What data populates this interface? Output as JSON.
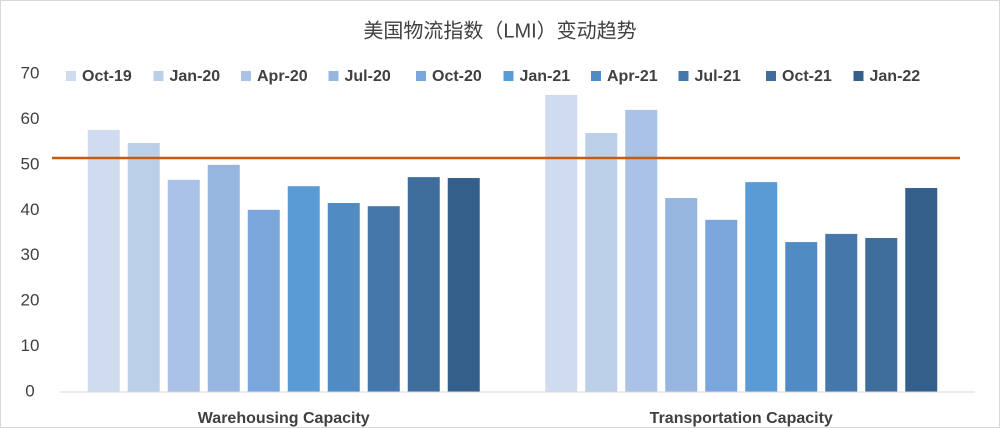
{
  "chart_data": {
    "type": "bar",
    "title": "美国物流指数（LMI）变动趋势",
    "categories": [
      "Warehousing Capacity",
      "Transportation Capacity"
    ],
    "series": [
      {
        "name": "Oct-19",
        "color": "#cfdcef",
        "values": [
          57.7,
          65.4
        ]
      },
      {
        "name": "Jan-20",
        "color": "#bccfe9",
        "values": [
          54.8,
          57.0
        ]
      },
      {
        "name": "Apr-20",
        "color": "#a9c2e5",
        "values": [
          46.7,
          62.1
        ]
      },
      {
        "name": "Jul-20",
        "color": "#96b6df",
        "values": [
          50.0,
          42.7
        ]
      },
      {
        "name": "Oct-20",
        "color": "#7aa6dc",
        "values": [
          40.1,
          37.9
        ]
      },
      {
        "name": "Jan-21",
        "color": "#5b9bd5",
        "values": [
          45.3,
          46.2
        ]
      },
      {
        "name": "Apr-21",
        "color": "#508bc4",
        "values": [
          41.6,
          33.0
        ]
      },
      {
        "name": "Jul-21",
        "color": "#4677aa",
        "values": [
          40.9,
          34.8
        ]
      },
      {
        "name": "Oct-21",
        "color": "#3f6d9c",
        "values": [
          47.3,
          33.9
        ]
      },
      {
        "name": "Jan-22",
        "color": "#355f8b",
        "values": [
          47.1,
          44.9
        ]
      }
    ],
    "reference_line": {
      "value": 51.5,
      "color": "#c55a11"
    },
    "ylim": [
      0,
      70
    ],
    "yticks": [
      0,
      10,
      20,
      30,
      40,
      50,
      60,
      70
    ]
  }
}
